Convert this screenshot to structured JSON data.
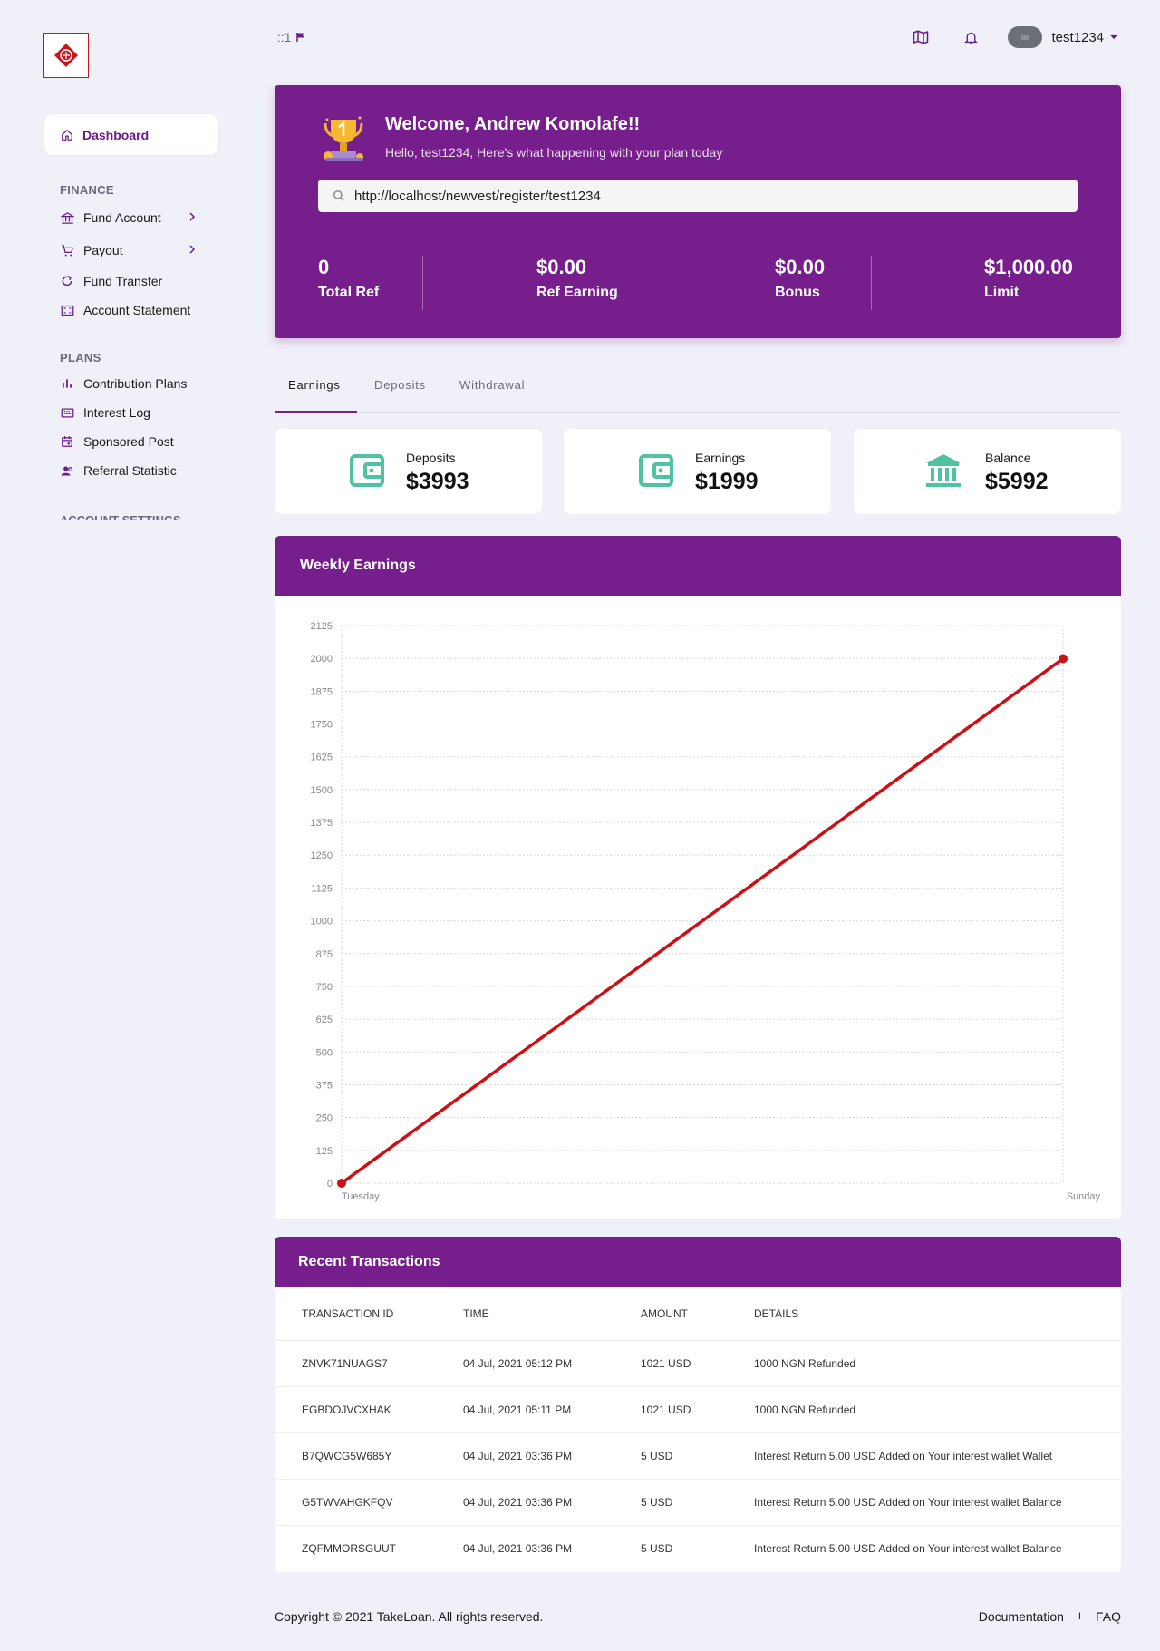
{
  "sidebar": {
    "active": {
      "label": "Dashboard",
      "icon": "home-icon"
    },
    "sections": [
      {
        "title": "FINANCE",
        "items": [
          {
            "label": "Fund Account",
            "icon": "bank-icon",
            "chevron": true
          },
          {
            "label": "Payout",
            "icon": "cart-icon",
            "chevron": true
          },
          {
            "label": "Fund Transfer",
            "icon": "refresh-icon",
            "chevron": false
          },
          {
            "label": "Account Statement",
            "icon": "statement-icon",
            "chevron": false
          }
        ]
      },
      {
        "title": "PLANS",
        "items": [
          {
            "label": "Contribution Plans",
            "icon": "bar-chart-icon"
          },
          {
            "label": "Interest Log",
            "icon": "keyboard-icon"
          },
          {
            "label": "Sponsored Post",
            "icon": "calendar-icon"
          },
          {
            "label": "Referral Statistic",
            "icon": "users-icon"
          }
        ]
      },
      {
        "title": "ACCOUNT SETTINGS"
      }
    ]
  },
  "topbar": {
    "left_text": "::1",
    "username": "test1234"
  },
  "welcome": {
    "title": "Welcome, Andrew Komolafe!!",
    "subtitle": "Hello, test1234, Here's what happening with your plan today",
    "ref_link": "http://localhost/newvest/register/test1234",
    "stats": [
      {
        "value": "0",
        "label": "Total Ref"
      },
      {
        "value": "$0.00",
        "label": "Ref Earning"
      },
      {
        "value": "$0.00",
        "label": "Bonus"
      },
      {
        "value": "$1,000.00",
        "label": "Limit"
      }
    ]
  },
  "tabs": [
    "Earnings",
    "Deposits",
    "Withdrawal"
  ],
  "cards": [
    {
      "label": "Deposits",
      "value": "$3993",
      "icon": "wallet-icon"
    },
    {
      "label": "Earnings",
      "value": "$1999",
      "icon": "wallet-icon"
    },
    {
      "label": "Balance",
      "value": "$5992",
      "icon": "bank-icon"
    }
  ],
  "weekly": {
    "title": "Weekly Earnings"
  },
  "chart_data": {
    "type": "line",
    "categories": [
      "Tuesday",
      "Sunday"
    ],
    "series": [
      {
        "values": [
          0,
          1999
        ],
        "color": "#cc1016"
      }
    ],
    "ylim": [
      0,
      2125
    ],
    "yticks": [
      0,
      125,
      250,
      375,
      500,
      625,
      750,
      875,
      1000,
      1125,
      1250,
      1375,
      1500,
      1625,
      1750,
      1875,
      2000,
      2125
    ],
    "grid": true,
    "title": "",
    "xlabel": "",
    "ylabel": ""
  },
  "transactions": {
    "title": "Recent Transactions",
    "columns": [
      "TRANSACTION ID",
      "TIME",
      "AMOUNT",
      "DETAILS"
    ],
    "rows": [
      [
        "ZNVK71NUAGS7",
        "04 Jul, 2021 05:12 PM",
        "1021 USD",
        "1000 NGN Refunded"
      ],
      [
        "EGBDOJVCXHAK",
        "04 Jul, 2021 05:11 PM",
        "1021 USD",
        "1000 NGN Refunded"
      ],
      [
        "B7QWCG5W685Y",
        "04 Jul, 2021 03:36 PM",
        "5 USD",
        "Interest Return 5.00 USD Added on Your interest wallet Wallet"
      ],
      [
        "G5TWVAHGKFQV",
        "04 Jul, 2021 03:36 PM",
        "5 USD",
        "Interest Return 5.00 USD Added on Your interest wallet Balance"
      ],
      [
        "ZQFMMORSGUUT",
        "04 Jul, 2021 03:36 PM",
        "5 USD",
        "Interest Return 5.00 USD Added on Your interest wallet Balance"
      ]
    ]
  },
  "footer": {
    "copyright": "Copyright © 2021 TakeLoan. All rights reserved.",
    "links": [
      "Documentation",
      "FAQ"
    ],
    "separator": "I"
  },
  "colors": {
    "brand": "#761e8c",
    "accent_green": "#4fc3a1",
    "line": "#cc1016"
  }
}
